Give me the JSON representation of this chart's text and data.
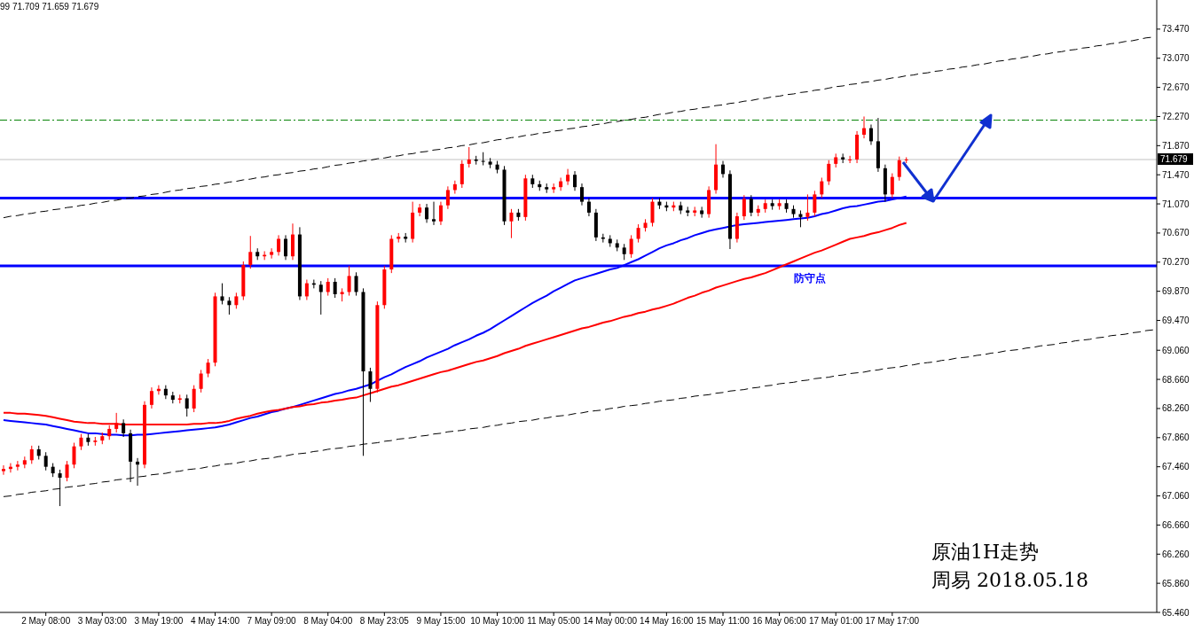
{
  "chart_data": {
    "type": "candlestick",
    "marker": "none",
    "categories": [
      null,
      null,
      null,
      null,
      null,
      null,
      "2 May 08:00",
      null,
      null,
      null,
      null,
      null,
      null,
      null,
      "3 May 03:00",
      null,
      null,
      null,
      null,
      null,
      null,
      null,
      "3 May 19:00",
      null,
      null,
      null,
      null,
      null,
      null,
      null,
      "4 May 14:00",
      null,
      null,
      null,
      null,
      null,
      null,
      null,
      "7 May 09:00",
      null,
      null,
      null,
      null,
      null,
      null,
      null,
      "8 May 04:00",
      null,
      null,
      null,
      null,
      null,
      null,
      null,
      "8 May 23:05",
      null,
      null,
      null,
      null,
      null,
      null,
      null,
      "9 May 15:00",
      null,
      null,
      null,
      null,
      null,
      null,
      null,
      "10 May 10:00",
      null,
      null,
      null,
      null,
      null,
      null,
      null,
      "11 May 05:00",
      null,
      null,
      null,
      null,
      null,
      null,
      null,
      "14 May 00:00",
      null,
      null,
      null,
      null,
      null,
      null,
      null,
      "14 May 16:00",
      null,
      null,
      null,
      null,
      null,
      null,
      null,
      "15 May 11:00",
      null,
      null,
      null,
      null,
      null,
      null,
      null,
      "16 May 06:00",
      null,
      null,
      null,
      null,
      null,
      null,
      null,
      "17 May 01:00",
      null,
      null,
      null,
      null,
      null,
      null,
      null,
      "17 May 17:00",
      null,
      null,
      null,
      null,
      null,
      null,
      null,
      null,
      null,
      null,
      null,
      null,
      null,
      null,
      null,
      null,
      null,
      null,
      null,
      null,
      null,
      null,
      null,
      null,
      null,
      null,
      null,
      null,
      null,
      null,
      null,
      null,
      null,
      null,
      null,
      null,
      null
    ],
    "ylim": [
      65.46,
      73.87
    ],
    "yticks": [
      {
        "value": 73.47,
        "label": "73.470"
      },
      {
        "value": 73.07,
        "label": "73.070"
      },
      {
        "value": 72.67,
        "label": "72.670"
      },
      {
        "value": 72.27,
        "label": "72.270"
      },
      {
        "value": 71.87,
        "label": "71.870"
      },
      {
        "value": 71.47,
        "label": "71.470"
      },
      {
        "value": 71.07,
        "label": "71.070"
      },
      {
        "value": 70.67,
        "label": "70.670"
      },
      {
        "value": 70.27,
        "label": "70.270"
      },
      {
        "value": 69.87,
        "label": "69.870"
      },
      {
        "value": 69.47,
        "label": "69.470"
      },
      {
        "value": 69.06,
        "label": "69.060"
      },
      {
        "value": 68.66,
        "label": "68.660"
      },
      {
        "value": 68.26,
        "label": "68.260"
      },
      {
        "value": 67.86,
        "label": "67.860"
      },
      {
        "value": 67.46,
        "label": "67.460"
      },
      {
        "value": 67.06,
        "label": "67.060"
      },
      {
        "value": 66.66,
        "label": "66.660"
      },
      {
        "value": 66.26,
        "label": "66.260"
      },
      {
        "value": 65.86,
        "label": "65.860"
      },
      {
        "value": 65.46,
        "label": "65.460"
      }
    ],
    "ohlc": [
      [
        67.4,
        67.48,
        67.35,
        67.43
      ],
      [
        67.43,
        67.51,
        67.38,
        67.46
      ],
      [
        67.46,
        67.54,
        67.41,
        67.49
      ],
      [
        67.49,
        67.6,
        67.44,
        67.55
      ],
      [
        67.55,
        67.75,
        67.5,
        67.7
      ],
      [
        67.7,
        67.75,
        67.56,
        67.61
      ],
      [
        67.61,
        67.66,
        67.41,
        67.46
      ],
      [
        67.46,
        67.51,
        67.32,
        67.37
      ],
      [
        67.37,
        67.42,
        66.92,
        67.31
      ],
      [
        67.31,
        67.54,
        67.26,
        67.49
      ],
      [
        67.49,
        67.79,
        67.44,
        67.74
      ],
      [
        67.74,
        67.91,
        67.69,
        67.86
      ],
      [
        67.86,
        67.91,
        67.75,
        67.8
      ],
      [
        67.8,
        67.87,
        67.75,
        67.82
      ],
      [
        67.82,
        67.93,
        67.77,
        67.88
      ],
      [
        67.88,
        68.03,
        67.83,
        67.98
      ],
      [
        67.98,
        68.2,
        67.93,
        68.06
      ],
      [
        68.06,
        68.11,
        67.87,
        67.92
      ],
      [
        67.92,
        67.97,
        67.25,
        67.53
      ],
      [
        67.53,
        67.58,
        67.2,
        67.49
      ],
      [
        67.49,
        68.36,
        67.44,
        68.31
      ],
      [
        68.31,
        68.55,
        68.26,
        68.5
      ],
      [
        68.5,
        68.58,
        68.45,
        68.53
      ],
      [
        68.53,
        68.58,
        68.39,
        68.44
      ],
      [
        68.44,
        68.49,
        68.33,
        68.38
      ],
      [
        68.38,
        68.45,
        68.33,
        68.4
      ],
      [
        68.4,
        68.45,
        68.15,
        68.26
      ],
      [
        68.26,
        68.58,
        68.21,
        68.53
      ],
      [
        68.53,
        68.79,
        68.48,
        68.74
      ],
      [
        68.74,
        68.94,
        68.69,
        68.89
      ],
      [
        68.89,
        69.85,
        68.84,
        69.8
      ],
      [
        69.8,
        69.98,
        69.69,
        69.74
      ],
      [
        69.74,
        69.79,
        69.55,
        69.68
      ],
      [
        69.68,
        69.85,
        69.63,
        69.8
      ],
      [
        69.8,
        70.28,
        69.75,
        70.23
      ],
      [
        70.23,
        70.63,
        70.18,
        70.41
      ],
      [
        70.41,
        70.46,
        70.3,
        70.35
      ],
      [
        70.35,
        70.42,
        70.3,
        70.37
      ],
      [
        70.37,
        70.46,
        70.32,
        70.41
      ],
      [
        70.41,
        70.64,
        70.36,
        70.59
      ],
      [
        70.59,
        70.64,
        70.3,
        70.35
      ],
      [
        70.35,
        70.8,
        70.3,
        70.65
      ],
      [
        70.65,
        70.75,
        69.75,
        69.8
      ],
      [
        69.8,
        70.03,
        69.75,
        69.98
      ],
      [
        69.98,
        70.03,
        69.91,
        69.96
      ],
      [
        69.96,
        70.01,
        69.55,
        69.86
      ],
      [
        69.86,
        70.05,
        69.81,
        70.0
      ],
      [
        70.0,
        70.05,
        69.78,
        69.83
      ],
      [
        69.83,
        69.91,
        69.73,
        69.86
      ],
      [
        69.86,
        70.22,
        69.81,
        70.08
      ],
      [
        70.08,
        70.13,
        69.81,
        69.86
      ],
      [
        69.86,
        69.91,
        67.61,
        68.77
      ],
      [
        68.77,
        68.82,
        68.35,
        68.53
      ],
      [
        68.53,
        69.73,
        68.48,
        69.68
      ],
      [
        69.68,
        70.22,
        69.63,
        70.17
      ],
      [
        70.17,
        70.64,
        70.12,
        70.59
      ],
      [
        70.59,
        70.67,
        70.54,
        70.62
      ],
      [
        70.62,
        70.67,
        70.54,
        70.59
      ],
      [
        70.59,
        71.1,
        70.54,
        70.95
      ],
      [
        70.95,
        71.07,
        70.9,
        71.02
      ],
      [
        71.02,
        71.07,
        70.81,
        70.86
      ],
      [
        70.86,
        71.1,
        70.78,
        70.83
      ],
      [
        70.83,
        71.1,
        70.78,
        71.05
      ],
      [
        71.05,
        71.31,
        71.0,
        71.26
      ],
      [
        71.26,
        71.39,
        71.21,
        71.34
      ],
      [
        71.34,
        71.67,
        71.29,
        71.62
      ],
      [
        71.62,
        71.85,
        71.57,
        71.68
      ],
      [
        71.68,
        71.73,
        71.61,
        71.66
      ],
      [
        71.66,
        71.78,
        71.6,
        71.65
      ],
      [
        71.65,
        71.7,
        71.56,
        71.61
      ],
      [
        71.61,
        71.66,
        71.49,
        71.54
      ],
      [
        71.54,
        71.59,
        70.78,
        70.83
      ],
      [
        70.83,
        71.0,
        70.6,
        70.95
      ],
      [
        70.95,
        71.0,
        70.84,
        70.89
      ],
      [
        70.89,
        71.47,
        70.84,
        71.42
      ],
      [
        71.42,
        71.47,
        71.29,
        71.34
      ],
      [
        71.34,
        71.39,
        71.25,
        71.3
      ],
      [
        71.3,
        71.35,
        71.22,
        71.27
      ],
      [
        71.27,
        71.35,
        71.22,
        71.3
      ],
      [
        71.3,
        71.43,
        71.25,
        71.38
      ],
      [
        71.38,
        71.55,
        71.33,
        71.47
      ],
      [
        71.47,
        71.52,
        71.25,
        71.3
      ],
      [
        71.3,
        71.35,
        71.05,
        71.1
      ],
      [
        71.1,
        71.15,
        70.9,
        70.95
      ],
      [
        70.95,
        71.0,
        70.56,
        70.61
      ],
      [
        70.61,
        70.66,
        70.54,
        70.59
      ],
      [
        70.59,
        70.64,
        70.48,
        70.53
      ],
      [
        70.53,
        70.58,
        70.42,
        70.47
      ],
      [
        70.47,
        70.52,
        70.3,
        70.38
      ],
      [
        70.38,
        70.64,
        70.33,
        70.59
      ],
      [
        70.59,
        70.79,
        70.54,
        70.74
      ],
      [
        70.74,
        70.86,
        70.69,
        70.81
      ],
      [
        70.81,
        71.15,
        70.76,
        71.1
      ],
      [
        71.1,
        71.15,
        71.0,
        71.05
      ],
      [
        71.05,
        71.1,
        70.97,
        71.02
      ],
      [
        71.02,
        71.1,
        70.97,
        71.05
      ],
      [
        71.05,
        71.1,
        70.93,
        70.98
      ],
      [
        70.98,
        71.03,
        70.9,
        70.95
      ],
      [
        70.95,
        71.03,
        70.9,
        70.98
      ],
      [
        70.98,
        71.03,
        70.88,
        70.93
      ],
      [
        70.93,
        71.31,
        70.88,
        71.26
      ],
      [
        71.26,
        71.89,
        71.21,
        71.61
      ],
      [
        71.61,
        71.66,
        71.43,
        71.48
      ],
      [
        71.48,
        71.53,
        70.45,
        70.59
      ],
      [
        70.59,
        70.95,
        70.54,
        70.9
      ],
      [
        70.9,
        71.19,
        70.85,
        71.14
      ],
      [
        71.14,
        71.19,
        70.9,
        70.95
      ],
      [
        70.95,
        71.05,
        70.9,
        71.0
      ],
      [
        71.0,
        71.13,
        70.95,
        71.08
      ],
      [
        71.08,
        71.13,
        70.99,
        71.04
      ],
      [
        71.04,
        71.13,
        70.99,
        71.08
      ],
      [
        71.08,
        71.13,
        70.95,
        71.0
      ],
      [
        71.0,
        71.05,
        70.88,
        70.93
      ],
      [
        70.93,
        70.98,
        70.75,
        70.89
      ],
      [
        70.89,
        71.2,
        70.84,
        70.95
      ],
      [
        70.95,
        71.25,
        70.9,
        71.2
      ],
      [
        71.2,
        71.43,
        71.15,
        71.38
      ],
      [
        71.38,
        71.67,
        71.33,
        71.62
      ],
      [
        71.62,
        71.76,
        71.57,
        71.71
      ],
      [
        71.71,
        71.76,
        71.63,
        71.68
      ],
      [
        71.68,
        71.73,
        71.63,
        71.68
      ],
      [
        71.68,
        72.07,
        71.63,
        72.02
      ],
      [
        72.02,
        72.27,
        71.97,
        72.11
      ],
      [
        72.11,
        72.16,
        71.88,
        71.93
      ],
      [
        71.93,
        72.25,
        71.51,
        71.56
      ],
      [
        71.56,
        71.61,
        71.1,
        71.2
      ],
      [
        71.2,
        71.49,
        71.15,
        71.44
      ],
      [
        71.44,
        71.72,
        71.39,
        71.67
      ],
      [
        71.67,
        71.71,
        71.63,
        71.68
      ],
      null,
      null,
      null,
      null,
      null,
      null,
      null,
      null,
      null,
      null,
      null,
      null,
      null,
      null,
      null,
      null,
      null,
      null,
      null,
      null,
      null,
      null,
      null,
      null,
      null,
      null,
      null,
      null,
      null,
      null,
      null,
      null,
      null,
      null,
      null
    ],
    "colors": [
      "#ff0000",
      "#ff0000",
      "#ff0000",
      "#ff0000",
      "#ff0000",
      "#000000",
      "#000000",
      "#000000",
      "#000000",
      "#ff0000",
      "#ff0000",
      "#ff0000",
      "#000000",
      "#ff0000",
      "#ff0000",
      "#ff0000",
      "#ff0000",
      "#000000",
      "#000000",
      "#000000",
      "#ff0000",
      "#ff0000",
      "#ff0000",
      "#000000",
      "#000000",
      "#ff0000",
      "#000000",
      "#ff0000",
      "#ff0000",
      "#ff0000",
      "#ff0000",
      "#000000",
      "#000000",
      "#ff0000",
      "#ff0000",
      "#ff0000",
      "#000000",
      "#ff0000",
      "#ff0000",
      "#ff0000",
      "#000000",
      "#ff0000",
      "#000000",
      "#ff0000",
      "#000000",
      "#000000",
      "#ff0000",
      "#000000",
      "#ff0000",
      "#ff0000",
      "#000000",
      "#000000",
      "#000000",
      "#ff0000",
      "#ff0000",
      "#ff0000",
      "#ff0000",
      "#000000",
      "#ff0000",
      "#ff0000",
      "#000000",
      "#000000",
      "#ff0000",
      "#ff0000",
      "#ff0000",
      "#ff0000",
      "#ff0000",
      "#000000",
      "#000000",
      "#000000",
      "#000000",
      "#000000",
      "#ff0000",
      "#000000",
      "#ff0000",
      "#000000",
      "#000000",
      "#000000",
      "#ff0000",
      "#ff0000",
      "#ff0000",
      "#000000",
      "#000000",
      "#000000",
      "#000000",
      "#000000",
      "#000000",
      "#000000",
      "#000000",
      "#ff0000",
      "#ff0000",
      "#ff0000",
      "#ff0000",
      "#000000",
      "#000000",
      "#ff0000",
      "#000000",
      "#000000",
      "#ff0000",
      "#000000",
      "#ff0000",
      "#ff0000",
      "#000000",
      "#000000",
      "#ff0000",
      "#ff0000",
      "#000000",
      "#ff0000",
      "#ff0000",
      "#000000",
      "#ff0000",
      "#000000",
      "#000000",
      "#000000",
      "#ff0000",
      "#ff0000",
      "#ff0000",
      "#ff0000",
      "#ff0000",
      "#000000",
      "#ff0000",
      "#ff0000",
      "#ff0000",
      "#000000",
      "#000000",
      "#000000",
      "#ff0000",
      "#ff0000",
      "#ff0000",
      null,
      null,
      null,
      null,
      null,
      null,
      null,
      null,
      null,
      null,
      null,
      null,
      null,
      null,
      null,
      null,
      null,
      null,
      null,
      null,
      null,
      null,
      null,
      null,
      null,
      null,
      null,
      null,
      null,
      null,
      null,
      null,
      null,
      null,
      null
    ],
    "series": [
      {
        "type": "line",
        "color": "#0000ff",
        "values": [
          68.1,
          68.09,
          68.08,
          68.07,
          68.06,
          68.05,
          68.04,
          68.02,
          68.0,
          67.98,
          67.96,
          67.94,
          67.92,
          67.92,
          67.91,
          67.9,
          67.9,
          67.89,
          67.89,
          67.9,
          67.9,
          67.91,
          67.92,
          67.93,
          67.94,
          67.95,
          67.96,
          67.97,
          67.98,
          67.99,
          68.0,
          68.02,
          68.04,
          68.07,
          68.1,
          68.13,
          68.15,
          68.18,
          68.21,
          68.23,
          68.26,
          68.28,
          68.31,
          68.34,
          68.37,
          68.4,
          68.43,
          68.46,
          68.48,
          68.51,
          68.53,
          68.56,
          68.59,
          68.64,
          68.69,
          68.73,
          68.78,
          68.83,
          68.87,
          68.91,
          68.96,
          69.0,
          69.04,
          69.08,
          69.13,
          69.17,
          69.21,
          69.26,
          69.3,
          69.35,
          69.41,
          69.47,
          69.53,
          69.59,
          69.65,
          69.71,
          69.76,
          69.81,
          69.87,
          69.92,
          69.97,
          70.02,
          70.05,
          70.08,
          70.11,
          70.14,
          70.17,
          70.19,
          70.23,
          70.27,
          70.31,
          70.36,
          70.41,
          70.46,
          70.5,
          70.53,
          70.57,
          70.6,
          70.64,
          70.67,
          70.7,
          70.72,
          70.74,
          70.76,
          70.78,
          70.79,
          70.8,
          70.81,
          70.82,
          70.83,
          70.84,
          70.85,
          70.86,
          70.87,
          70.88,
          70.9,
          70.93,
          70.95,
          70.98,
          71.01,
          71.03,
          71.04,
          71.06,
          71.08,
          71.1,
          71.11,
          71.13,
          71.15,
          71.17,
          null,
          null,
          null,
          null,
          null,
          null,
          null,
          null,
          null,
          null,
          null,
          null,
          null,
          null,
          null,
          null,
          null,
          null,
          null,
          null,
          null,
          null,
          null,
          null,
          null,
          null,
          null,
          null,
          null,
          null,
          null,
          null,
          null,
          null,
          null
        ]
      },
      {
        "type": "line",
        "color": "#ff0000",
        "values": [
          68.2,
          68.2,
          68.19,
          68.19,
          68.18,
          68.17,
          68.16,
          68.14,
          68.12,
          68.1,
          68.08,
          68.07,
          68.06,
          68.06,
          68.05,
          68.05,
          68.05,
          68.04,
          68.04,
          68.04,
          68.04,
          68.04,
          68.04,
          68.04,
          68.04,
          68.04,
          68.04,
          68.05,
          68.05,
          68.06,
          68.06,
          68.07,
          68.09,
          68.12,
          68.14,
          68.16,
          68.19,
          68.21,
          68.23,
          68.24,
          68.26,
          68.28,
          68.29,
          68.31,
          68.32,
          68.34,
          68.35,
          68.37,
          68.38,
          68.4,
          68.41,
          68.44,
          68.47,
          68.5,
          68.53,
          68.56,
          68.58,
          68.61,
          68.64,
          68.67,
          68.7,
          68.73,
          68.76,
          68.78,
          68.81,
          68.84,
          68.87,
          68.9,
          68.92,
          68.95,
          68.98,
          69.02,
          69.05,
          69.08,
          69.12,
          69.15,
          69.18,
          69.21,
          69.24,
          69.27,
          69.3,
          69.33,
          69.36,
          69.38,
          69.41,
          69.44,
          69.46,
          69.49,
          69.52,
          69.54,
          69.57,
          69.59,
          69.62,
          69.64,
          69.67,
          69.7,
          69.74,
          69.78,
          69.81,
          69.85,
          69.88,
          69.92,
          69.95,
          69.98,
          70.01,
          70.04,
          70.06,
          70.09,
          70.12,
          70.16,
          70.2,
          70.24,
          70.28,
          70.32,
          70.36,
          70.4,
          70.43,
          70.47,
          70.51,
          70.55,
          70.59,
          70.61,
          70.63,
          70.66,
          70.68,
          70.71,
          70.74,
          70.78,
          70.81,
          null,
          null,
          null,
          null,
          null,
          null,
          null,
          null,
          null,
          null,
          null,
          null,
          null,
          null,
          null,
          null,
          null,
          null,
          null,
          null,
          null,
          null,
          null,
          null,
          null,
          null,
          null,
          null,
          null,
          null,
          null,
          null,
          null,
          null,
          null
        ]
      },
      {
        "type": "line",
        "color": "#000000",
        "line_style": "dashed",
        "values": [
          70.88,
          70.9,
          70.91,
          70.93,
          70.94,
          70.96,
          70.97,
          70.99,
          71.0,
          71.02,
          71.03,
          71.05,
          71.06,
          71.08,
          71.09,
          71.11,
          71.12,
          71.14,
          71.15,
          71.17,
          71.18,
          71.2,
          71.21,
          71.23,
          71.25,
          71.26,
          71.28,
          71.29,
          71.31,
          71.32,
          71.34,
          71.35,
          71.37,
          71.38,
          71.4,
          71.41,
          71.43,
          71.44,
          71.46,
          71.47,
          71.49,
          71.5,
          71.52,
          71.53,
          71.55,
          71.56,
          71.58,
          71.6,
          71.61,
          71.63,
          71.64,
          71.66,
          71.67,
          71.69,
          71.7,
          71.72,
          71.73,
          71.75,
          71.76,
          71.78,
          71.79,
          71.81,
          71.82,
          71.84,
          71.85,
          71.87,
          71.88,
          71.9,
          71.91,
          71.93,
          71.95,
          71.96,
          71.98,
          71.99,
          72.01,
          72.02,
          72.04,
          72.05,
          72.07,
          72.08,
          72.1,
          72.11,
          72.13,
          72.14,
          72.16,
          72.17,
          72.19,
          72.2,
          72.22,
          72.23,
          72.25,
          72.26,
          72.28,
          72.3,
          72.31,
          72.33,
          72.34,
          72.36,
          72.37,
          72.39,
          72.4,
          72.42,
          72.43,
          72.45,
          72.46,
          72.48,
          72.49,
          72.51,
          72.52,
          72.54,
          72.55,
          72.57,
          72.58,
          72.6,
          72.61,
          72.63,
          72.64,
          72.66,
          72.68,
          72.69,
          72.71,
          72.72,
          72.74,
          72.75,
          72.77,
          72.78,
          72.8,
          72.81,
          72.83,
          72.84,
          72.86,
          72.87,
          72.89,
          72.9,
          72.92,
          72.93,
          72.95,
          72.96,
          72.98,
          72.99,
          73.01,
          73.03,
          73.04,
          73.06,
          73.07,
          73.09,
          73.1,
          73.12,
          73.13,
          73.15,
          73.16,
          73.18,
          73.19,
          73.21,
          73.22,
          73.24,
          73.25,
          73.27,
          73.28,
          73.3,
          73.31,
          73.33,
          73.35,
          73.36
        ]
      },
      {
        "type": "line",
        "color": "#000000",
        "line_style": "dashed",
        "values": [
          67.05,
          67.06,
          67.08,
          67.09,
          67.11,
          67.12,
          67.13,
          67.15,
          67.16,
          67.18,
          67.19,
          67.2,
          67.22,
          67.23,
          67.25,
          67.26,
          67.28,
          67.29,
          67.3,
          67.32,
          67.33,
          67.35,
          67.36,
          67.37,
          67.39,
          67.4,
          67.42,
          67.43,
          67.44,
          67.46,
          67.47,
          67.49,
          67.5,
          67.51,
          67.53,
          67.54,
          67.56,
          67.57,
          67.58,
          67.6,
          67.61,
          67.63,
          67.64,
          67.65,
          67.67,
          67.68,
          67.7,
          67.71,
          67.72,
          67.74,
          67.75,
          67.77,
          67.78,
          67.79,
          67.81,
          67.82,
          67.84,
          67.85,
          67.86,
          67.88,
          67.89,
          67.91,
          67.92,
          67.94,
          67.95,
          67.96,
          67.98,
          67.99,
          68.0,
          68.02,
          68.03,
          68.05,
          68.06,
          68.08,
          68.09,
          68.1,
          68.12,
          68.13,
          68.15,
          68.16,
          68.17,
          68.19,
          68.2,
          68.22,
          68.23,
          68.24,
          68.26,
          68.27,
          68.29,
          68.3,
          68.31,
          68.33,
          68.34,
          68.36,
          68.37,
          68.38,
          68.4,
          68.41,
          68.43,
          68.44,
          68.45,
          68.47,
          68.48,
          68.5,
          68.51,
          68.52,
          68.54,
          68.55,
          68.57,
          68.58,
          68.6,
          68.61,
          68.62,
          68.64,
          68.65,
          68.67,
          68.68,
          68.69,
          68.71,
          68.72,
          68.74,
          68.75,
          68.76,
          68.78,
          68.79,
          68.81,
          68.82,
          68.83,
          68.85,
          68.86,
          68.88,
          68.89,
          68.9,
          68.92,
          68.93,
          68.95,
          68.96,
          68.97,
          68.99,
          69.0,
          69.02,
          69.03,
          69.05,
          69.06,
          69.07,
          69.09,
          69.1,
          69.12,
          69.13,
          69.14,
          69.16,
          69.17,
          69.19,
          69.2,
          69.21,
          69.23,
          69.24,
          69.26,
          69.27,
          69.28,
          69.3,
          69.31,
          69.33,
          69.34
        ]
      }
    ],
    "ref_lines": [
      {
        "axis": "y",
        "value": 71.679,
        "label": "71.679",
        "color": "#c0c0c0"
      },
      {
        "axis": "y",
        "value": 72.22,
        "color": "#008000",
        "line_style": "dashed"
      },
      {
        "axis": "y",
        "value": 70.22,
        "label": "防守点",
        "color": "#0000ff"
      },
      {
        "axis": "y",
        "value": 71.15,
        "color": "#0000ff"
      }
    ],
    "annotations": [
      "99 71.709 71.659 71.679",
      "原油1H走势",
      "周易 2018.05.18"
    ]
  }
}
